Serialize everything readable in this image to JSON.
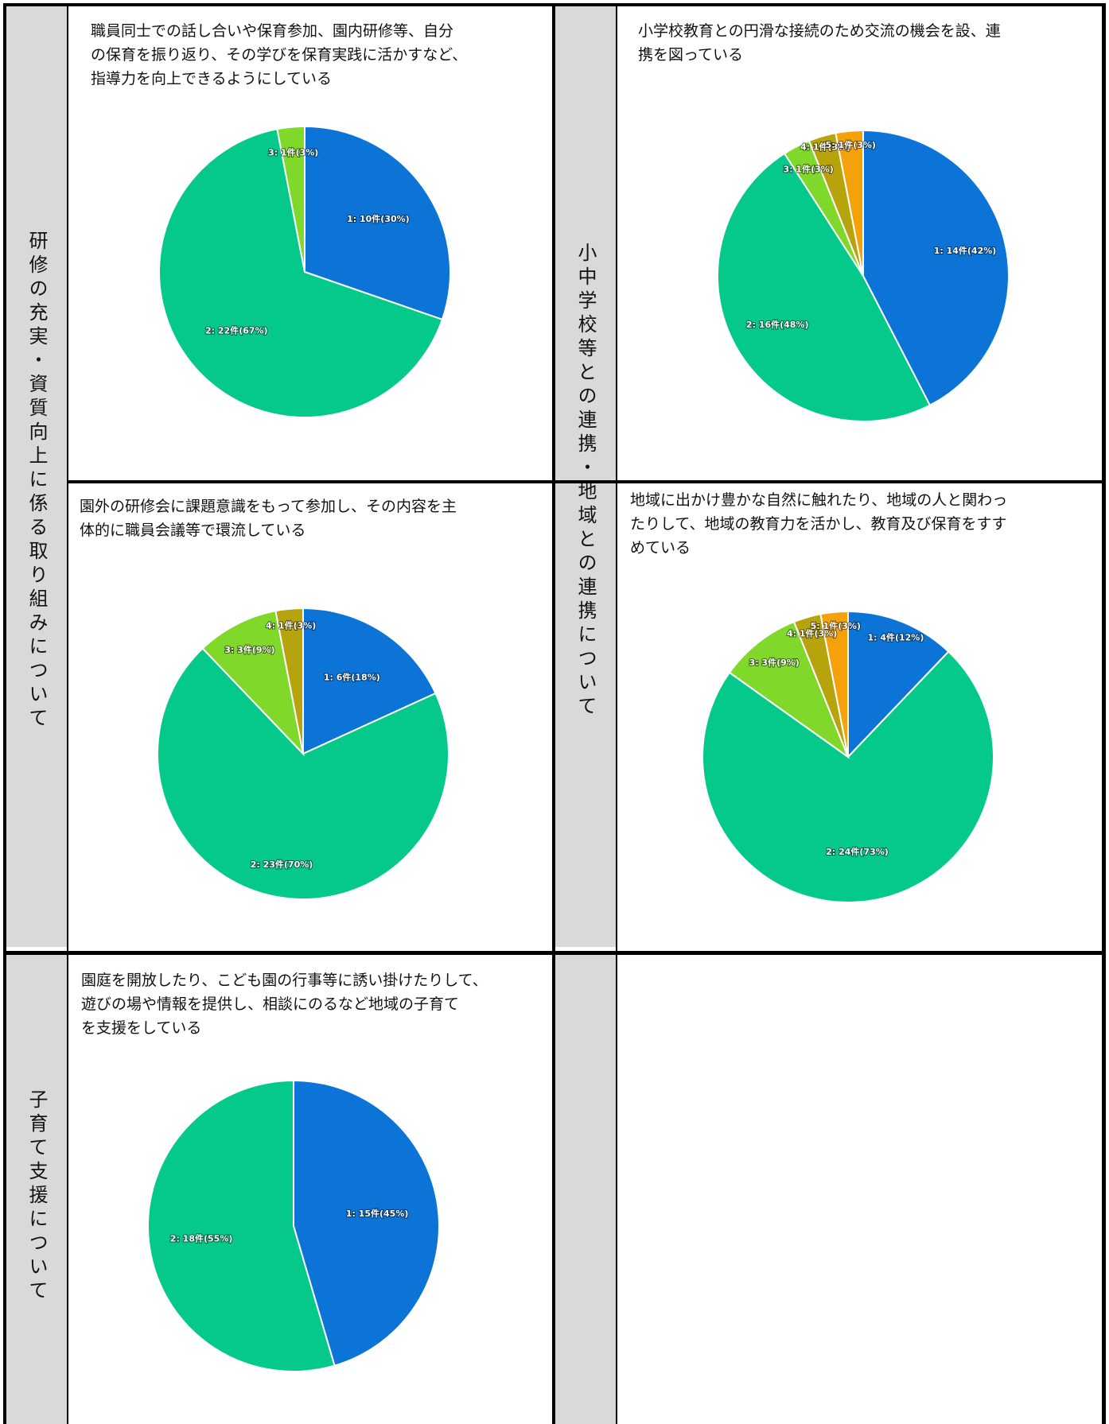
{
  "sections": {
    "training": "研修の充実・資質向上に係る取り組みについて",
    "school_community": "小中学校等との連携・地域との連携について",
    "childcare_support": "子育て支援について"
  },
  "colors": {
    "1": "#0b74d6",
    "2": "#05c98a",
    "3": "#7fd82a",
    "4": "#b7a30c",
    "5": "#f5a20a",
    "side_band": "#d9d9d9",
    "border": "#000000"
  },
  "chart_data": [
    {
      "id": "staff_training",
      "type": "pie",
      "title": "職員同士での話し合いや保育参加、園内研修等、自分の保育を振り返り、その学びを保育実践に活かすなど、指導力を向上できるようにしている",
      "title_lines": [
        "職員同士での話し合いや保育参加、園内研修等、自分",
        "の保育を振り返り、その学びを保育実践に活かすなど、",
        "指導力を向上できるようにしている"
      ],
      "slices": [
        {
          "category": "1",
          "count": 10,
          "percent": 30,
          "label": "1: 10件(30%)"
        },
        {
          "category": "2",
          "count": 22,
          "percent": 67,
          "label": "2: 22件(67%)"
        },
        {
          "category": "3",
          "count": 1,
          "percent": 3,
          "label": "3: 1件(3%)"
        }
      ]
    },
    {
      "id": "external_training",
      "type": "pie",
      "title": "園外の研修会に課題意識をもって参加し、その内容を主体的に職員会議等で環流している",
      "title_lines": [
        "園外の研修会に課題意識をもって参加し、その内容を主",
        "体的に職員会議等で環流している"
      ],
      "slices": [
        {
          "category": "1",
          "count": 6,
          "percent": 18,
          "label": "1: 6件(18%)"
        },
        {
          "category": "2",
          "count": 23,
          "percent": 70,
          "label": "2: 23件(70%)"
        },
        {
          "category": "3",
          "count": 3,
          "percent": 9,
          "label": "3: 3件(9%)"
        },
        {
          "category": "4",
          "count": 1,
          "percent": 3,
          "label": "4: 1件(3%)"
        }
      ]
    },
    {
      "id": "elementary_exchange",
      "type": "pie",
      "title": "小学校教育との円滑な接続のため交流の機会を設、連携を図っている",
      "title_lines": [
        "小学校教育との円滑な接続のため交流の機会を設、連",
        "携を図っている"
      ],
      "slices": [
        {
          "category": "1",
          "count": 14,
          "percent": 42,
          "label": "1: 14件(42%)"
        },
        {
          "category": "2",
          "count": 16,
          "percent": 48,
          "label": "2: 16件(48%)"
        },
        {
          "category": "3",
          "count": 1,
          "percent": 3,
          "label": "3: 1件(3%)"
        },
        {
          "category": "4",
          "count": 1,
          "percent": 3,
          "label": "4: 1件(3%)"
        },
        {
          "category": "5",
          "count": 1,
          "percent": 3,
          "label": "5: 1件(3%)"
        }
      ]
    },
    {
      "id": "community_education",
      "type": "pie",
      "title": "地域に出かけ豊かな自然に触れたり、地域の人と関わったりして、地域の教育力を活かし、教育及び保育をすすめている",
      "title_lines": [
        "地域に出かけ豊かな自然に触れたり、地域の人と関わっ",
        "たりして、地域の教育力を活かし、教育及び保育をすす",
        "めている"
      ],
      "slices": [
        {
          "category": "1",
          "count": 4,
          "percent": 12,
          "label": "1: 4件(12%)"
        },
        {
          "category": "2",
          "count": 24,
          "percent": 73,
          "label": "2: 24件(73%)"
        },
        {
          "category": "3",
          "count": 3,
          "percent": 9,
          "label": "3: 3件(9%)"
        },
        {
          "category": "4",
          "count": 1,
          "percent": 3,
          "label": "4: 1件(3%)"
        },
        {
          "category": "5",
          "count": 1,
          "percent": 3,
          "label": "5: 1件(3%)"
        }
      ]
    },
    {
      "id": "childcare_support",
      "type": "pie",
      "title": "園庭を開放したり、こども園の行事等に誘い掛けたりして、遊びの場や情報を提供し、相談にのるなど地域の子育てを支援をしている",
      "title_lines": [
        "園庭を開放したり、こども園の行事等に誘い掛けたりして、",
        "遊びの場や情報を提供し、相談にのるなど地域の子育て",
        "を支援をしている"
      ],
      "slices": [
        {
          "category": "1",
          "count": 15,
          "percent": 45,
          "label": "1: 15件(45%)"
        },
        {
          "category": "2",
          "count": 18,
          "percent": 55,
          "label": "2: 18件(55%)"
        }
      ]
    }
  ]
}
